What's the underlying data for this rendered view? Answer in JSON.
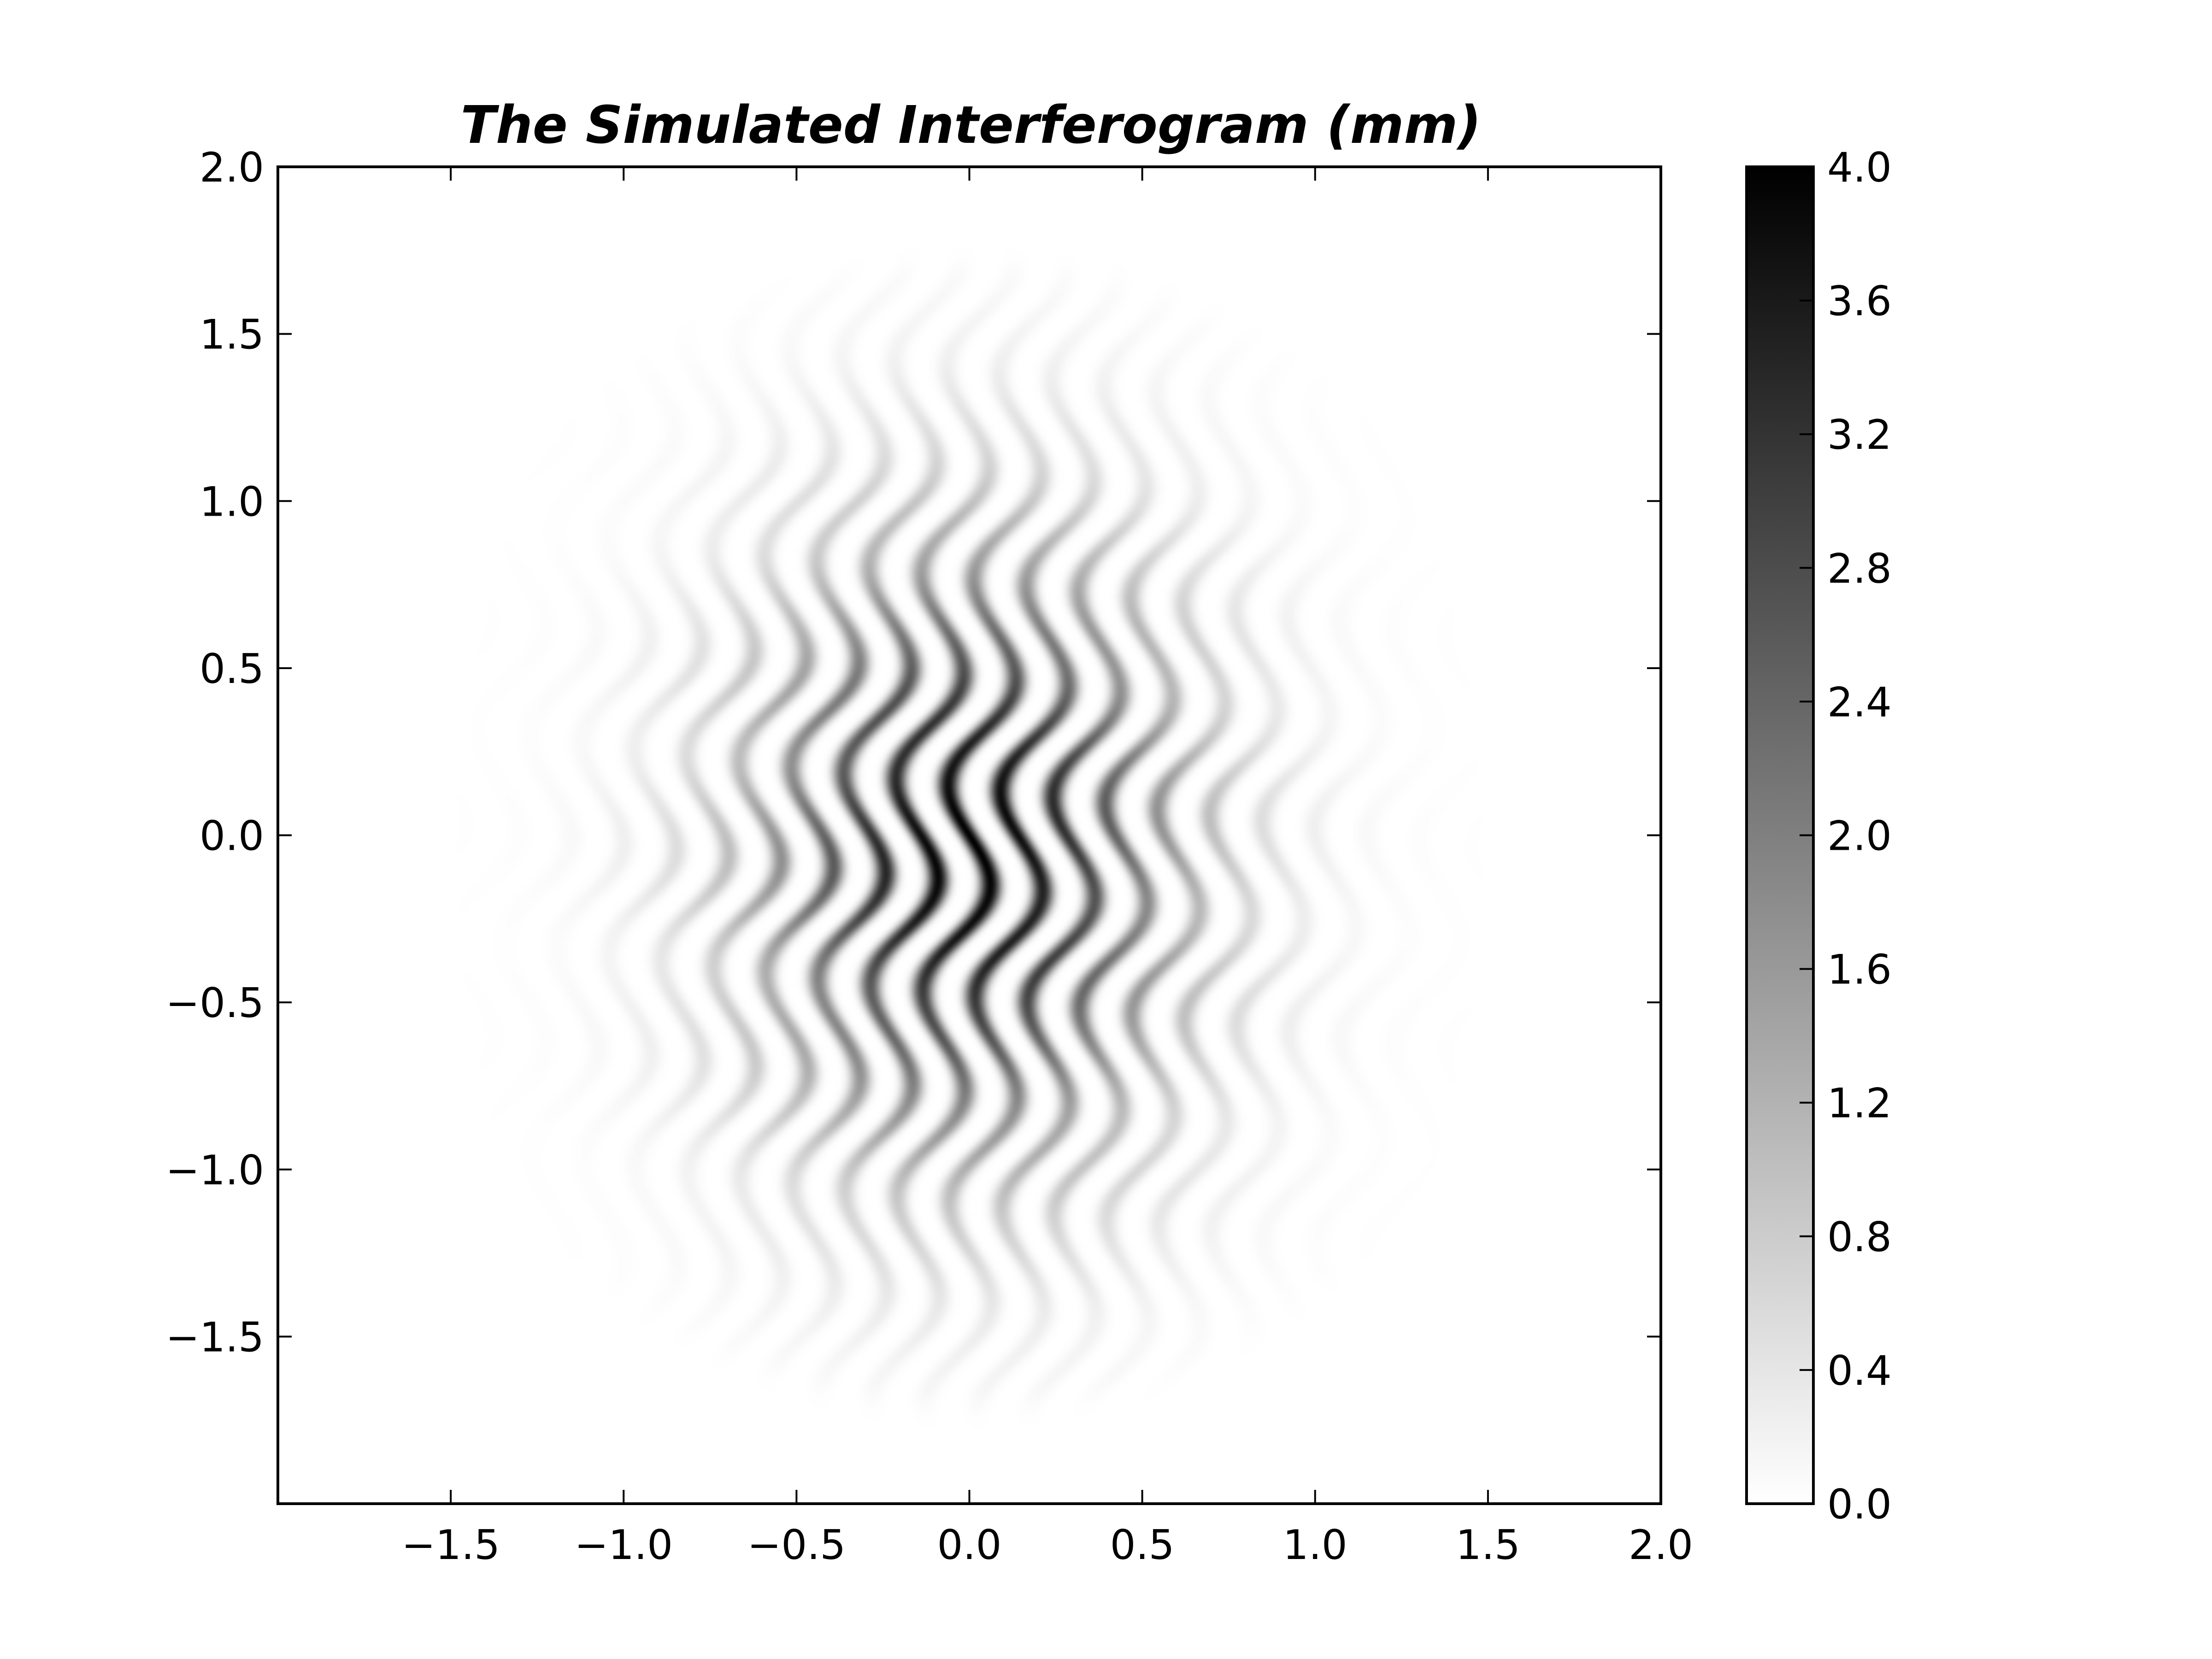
{
  "chart_data": {
    "type": "heatmap",
    "title": "The Simulated Interferogram (mm)",
    "xlabel": "",
    "ylabel": "",
    "xlim": [
      -2.0,
      2.0
    ],
    "ylim": [
      -2.0,
      2.0
    ],
    "x_ticks": [
      -1.5,
      -1.0,
      -0.5,
      0.0,
      0.5,
      1.0,
      1.5,
      2.0
    ],
    "x_tick_labels": [
      "−1.5",
      "−1.0",
      "−0.5",
      "0.0",
      "0.5",
      "1.0",
      "1.5",
      "2.0"
    ],
    "y_ticks": [
      2.0,
      1.5,
      1.0,
      0.5,
      0.0,
      -0.5,
      -1.0,
      -1.5
    ],
    "y_tick_labels": [
      "2.0",
      "1.5",
      "1.0",
      "0.5",
      "0.0",
      "−0.5",
      "−1.0",
      "−1.5"
    ],
    "colormap": "gray_r",
    "colorbar": {
      "range": [
        0.0,
        4.0
      ],
      "ticks": [
        4.0,
        3.6,
        3.2,
        2.8,
        2.4,
        2.0,
        1.6,
        1.2,
        0.8,
        0.4,
        0.0
      ],
      "tick_labels": [
        "4.0",
        "3.6",
        "3.2",
        "2.8",
        "2.4",
        "2.0",
        "1.6",
        "1.2",
        "0.8",
        "0.4",
        "0.0"
      ]
    },
    "intensity_model": {
      "peak_intensity": 4.0,
      "envelope_center": [
        0.0,
        -0.05
      ],
      "envelope_sigma": [
        0.42,
        0.62
      ],
      "aperture_radius": 1.65,
      "fringe_frequency_per_mm": 6.5,
      "fringe_tilt": 0.12,
      "wave_amplitude_mm": 0.08,
      "wave_frequency_per_mm": 1.6,
      "fringe_orientation": "near-vertical, wavy"
    },
    "grid": false,
    "legend": "none"
  }
}
